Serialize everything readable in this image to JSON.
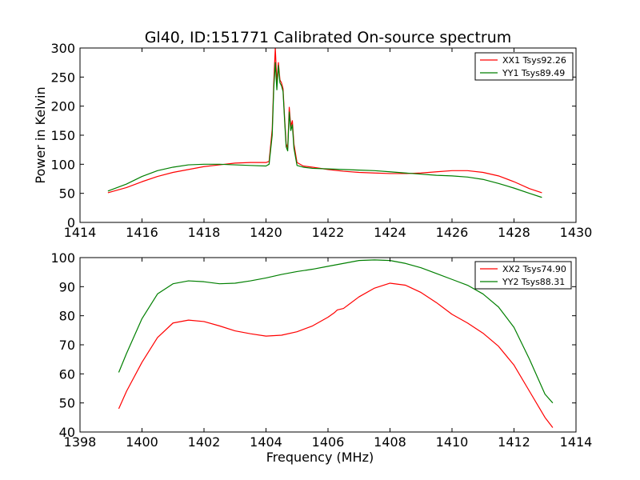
{
  "figure": {
    "title": "Gl40, ID:151771 Calibrated On-source spectrum"
  },
  "colors": {
    "xx": "#ff0000",
    "yy": "#007f00"
  },
  "chart_data": [
    {
      "type": "line",
      "title": "Gl40, ID:151771 Calibrated On-source spectrum",
      "xlabel": "",
      "ylabel": "Power in Kelvin",
      "xlim": [
        1414,
        1430
      ],
      "ylim": [
        0,
        300
      ],
      "xticks": [
        "1414",
        "1416",
        "1418",
        "1420",
        "1422",
        "1424",
        "1426",
        "1428",
        "1430"
      ],
      "yticks": [
        "0",
        "50",
        "100",
        "150",
        "200",
        "250",
        "300"
      ],
      "legend_position": "top-right",
      "series": [
        {
          "name": "XX1 Tsys92.26",
          "color": "#ff0000",
          "x": [
            1414.9,
            1415.5,
            1416,
            1416.5,
            1417,
            1417.5,
            1418,
            1418.5,
            1419,
            1419.5,
            1420.0,
            1420.1,
            1420.2,
            1420.25,
            1420.3,
            1420.35,
            1420.4,
            1420.45,
            1420.5,
            1420.55,
            1420.6,
            1420.65,
            1420.7,
            1420.75,
            1420.8,
            1420.85,
            1420.9,
            1421.0,
            1421.2,
            1421.5,
            1422,
            1422.5,
            1423,
            1423.5,
            1424,
            1424.5,
            1425,
            1425.5,
            1426,
            1426.5,
            1427,
            1427.5,
            1428,
            1428.5,
            1428.9
          ],
          "y": [
            51,
            60,
            70,
            79,
            86,
            91,
            96,
            99,
            102,
            103,
            103,
            105,
            160,
            240,
            300,
            240,
            275,
            245,
            240,
            230,
            180,
            135,
            128,
            198,
            165,
            175,
            135,
            103,
            97,
            95,
            91,
            88,
            86,
            85,
            84,
            84,
            85,
            87,
            89,
            89,
            86,
            80,
            70,
            58,
            51
          ]
        },
        {
          "name": "YY1 Tsys89.49",
          "color": "#007f00",
          "x": [
            1414.9,
            1415.5,
            1416,
            1416.5,
            1417,
            1417.5,
            1418,
            1418.5,
            1419,
            1419.5,
            1420.0,
            1420.1,
            1420.2,
            1420.25,
            1420.3,
            1420.35,
            1420.4,
            1420.45,
            1420.5,
            1420.55,
            1420.6,
            1420.65,
            1420.7,
            1420.75,
            1420.8,
            1420.85,
            1420.9,
            1421.0,
            1421.2,
            1421.5,
            1422,
            1422.5,
            1423,
            1423.5,
            1424,
            1424.5,
            1425,
            1425.5,
            1426,
            1426.5,
            1427,
            1427.5,
            1428,
            1428.5,
            1428.9
          ],
          "y": [
            54,
            66,
            79,
            89,
            95,
            99,
            100,
            100,
            99,
            98,
            97,
            100,
            150,
            230,
            275,
            228,
            270,
            240,
            235,
            225,
            175,
            130,
            123,
            190,
            158,
            168,
            128,
            98,
            95,
            93,
            92,
            91,
            90,
            89,
            87,
            85,
            83,
            81,
            80,
            78,
            74,
            67,
            59,
            50,
            43
          ]
        }
      ]
    },
    {
      "type": "line",
      "title": "",
      "xlabel": "Frequency (MHz)",
      "ylabel": "",
      "xlim": [
        1398,
        1414
      ],
      "ylim": [
        40,
        100
      ],
      "xticks": [
        "1398",
        "1400",
        "1402",
        "1404",
        "1406",
        "1408",
        "1410",
        "1412",
        "1414"
      ],
      "yticks": [
        "40",
        "50",
        "60",
        "70",
        "80",
        "90",
        "100"
      ],
      "legend_position": "top-right",
      "series": [
        {
          "name": "XX2 Tsys74.90",
          "color": "#ff0000",
          "x": [
            1399.25,
            1399.5,
            1400,
            1400.5,
            1401,
            1401.5,
            1402,
            1402.5,
            1403,
            1403.5,
            1404,
            1404.5,
            1405,
            1405.5,
            1406,
            1406.2,
            1406.3,
            1406.5,
            1407,
            1407.5,
            1408,
            1408.5,
            1409,
            1409.5,
            1410,
            1410.5,
            1411,
            1411.5,
            1412,
            1412.5,
            1413,
            1413.25
          ],
          "y": [
            48,
            54,
            64,
            72.5,
            77.5,
            78.5,
            78,
            76.5,
            74.8,
            73.8,
            73,
            73.3,
            74.5,
            76.5,
            79.5,
            81,
            82,
            82.5,
            86.5,
            89.5,
            91.2,
            90.5,
            88,
            84.5,
            80.5,
            77.5,
            74,
            69.5,
            63,
            54,
            45,
            41.5
          ]
        },
        {
          "name": "YY2 Tsys88.31",
          "color": "#007f00",
          "x": [
            1399.25,
            1399.5,
            1400,
            1400.5,
            1401,
            1401.5,
            1402,
            1402.5,
            1403,
            1403.5,
            1404,
            1404.5,
            1405,
            1405.5,
            1406,
            1406.5,
            1407,
            1407.5,
            1408,
            1408.5,
            1409,
            1409.5,
            1410,
            1410.5,
            1411,
            1411.5,
            1412,
            1412.5,
            1413,
            1413.25
          ],
          "y": [
            60.5,
            67,
            79,
            87.5,
            91,
            92,
            91.7,
            91,
            91.2,
            92,
            93,
            94.2,
            95.2,
            96,
            97,
            98,
            99,
            99.2,
            99,
            98,
            96.5,
            94.5,
            92.5,
            90.5,
            87.5,
            83,
            76,
            65,
            53,
            50
          ]
        }
      ]
    }
  ]
}
